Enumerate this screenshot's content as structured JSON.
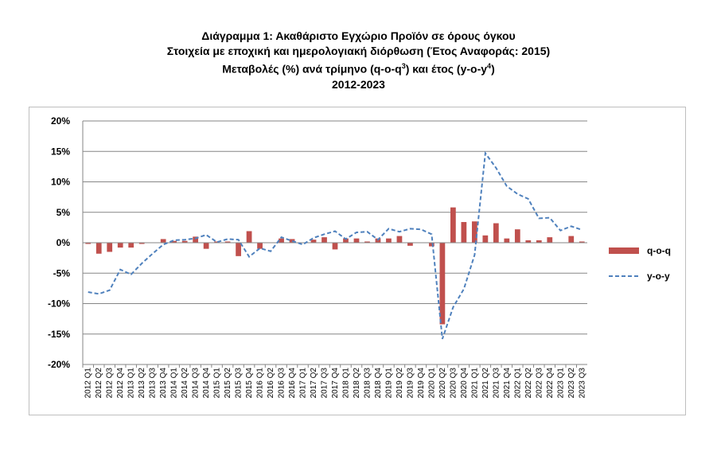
{
  "title": {
    "line1": "Διάγραμμα 1: Ακαθάριστο Εγχώριο Προϊόν σε όρους όγκου",
    "line2": "Στοιχεία με εποχική και ημερολογιακή διόρθωση (Έτος Αναφοράς: 2015)",
    "line3_pre": "Μεταβολές (%) ανά τρίμηνο (q-o-q",
    "line3_sup1": "3",
    "line3_mid": ") και έτος (y-o-y",
    "line3_sup2": "4",
    "line3_post": ")",
    "line4": "2012-2023"
  },
  "colors": {
    "bar": "#c0504d",
    "line": "#4f81bd",
    "grid": "#868686"
  },
  "chart_data": {
    "type": "bar",
    "ylim": [
      -20,
      20
    ],
    "ytick_labels": [
      "20%",
      "15%",
      "10%",
      "5%",
      "0%",
      "-5%",
      "-10%",
      "-15%",
      "-20%"
    ],
    "ytick_values": [
      20,
      15,
      10,
      5,
      0,
      -5,
      -10,
      -15,
      -20
    ],
    "categories": [
      "2012 Q1",
      "2012 Q2",
      "2012 Q3",
      "2012 Q4",
      "2013 Q1",
      "2013 Q2",
      "2013 Q3",
      "2013 Q4",
      "2014 Q1",
      "2014 Q2",
      "2014 Q3",
      "2014 Q4",
      "2015 Q1",
      "2015 Q2",
      "2015 Q3",
      "2015 Q4",
      "2016 Q1",
      "2016 Q2",
      "2016 Q3",
      "2016 Q4",
      "2017 Q1",
      "2017 Q2",
      "2017 Q3",
      "2017 Q4",
      "2018 Q1",
      "2018 Q2",
      "2018 Q3",
      "2018 Q4",
      "2019 Q1",
      "2019 Q2",
      "2019 Q3",
      "2019 Q4",
      "2020 Q1",
      "2020 Q2",
      "2020 Q3",
      "2020 Q4",
      "2021 Q1",
      "2021 Q2",
      "2021 Q3",
      "2021 Q4",
      "2022 Q1",
      "2022 Q2",
      "2022 Q3",
      "2022 Q4",
      "2023 Q1",
      "2023 Q2",
      "2023 Q3"
    ],
    "series": [
      {
        "name": "q-o-q",
        "kind": "bar",
        "values": [
          -0.2,
          -1.8,
          -1.5,
          -0.8,
          -0.8,
          -0.2,
          0.0,
          0.6,
          0.3,
          0.3,
          1.0,
          -1.0,
          0.2,
          0.2,
          -2.2,
          1.9,
          -1.0,
          0.0,
          0.7,
          0.6,
          0.0,
          0.5,
          0.9,
          -1.1,
          0.7,
          0.7,
          0.2,
          0.7,
          0.7,
          1.1,
          -0.5,
          0.0,
          -0.6,
          -13.4,
          5.8,
          3.4,
          3.5,
          1.2,
          3.2,
          0.7,
          2.2,
          0.4,
          0.4,
          0.9,
          0.0,
          1.1,
          0.2
        ]
      },
      {
        "name": "y-o-y",
        "kind": "line",
        "values": [
          -8.1,
          -8.4,
          -7.8,
          -4.4,
          -5.2,
          -3.4,
          -1.8,
          -0.3,
          0.4,
          0.5,
          0.7,
          1.3,
          0.1,
          0.6,
          0.5,
          -2.3,
          -0.9,
          -1.4,
          0.9,
          0.3,
          -0.3,
          0.8,
          1.4,
          1.9,
          0.6,
          1.7,
          1.8,
          0.5,
          2.3,
          1.8,
          2.3,
          2.2,
          1.4,
          -15.8,
          -10.6,
          -7.6,
          -2.0,
          14.7,
          12.3,
          9.3,
          8.0,
          7.2,
          4.0,
          4.1,
          2.0,
          2.7,
          2.1
        ]
      }
    ],
    "legend_position": "right",
    "grid": true
  }
}
